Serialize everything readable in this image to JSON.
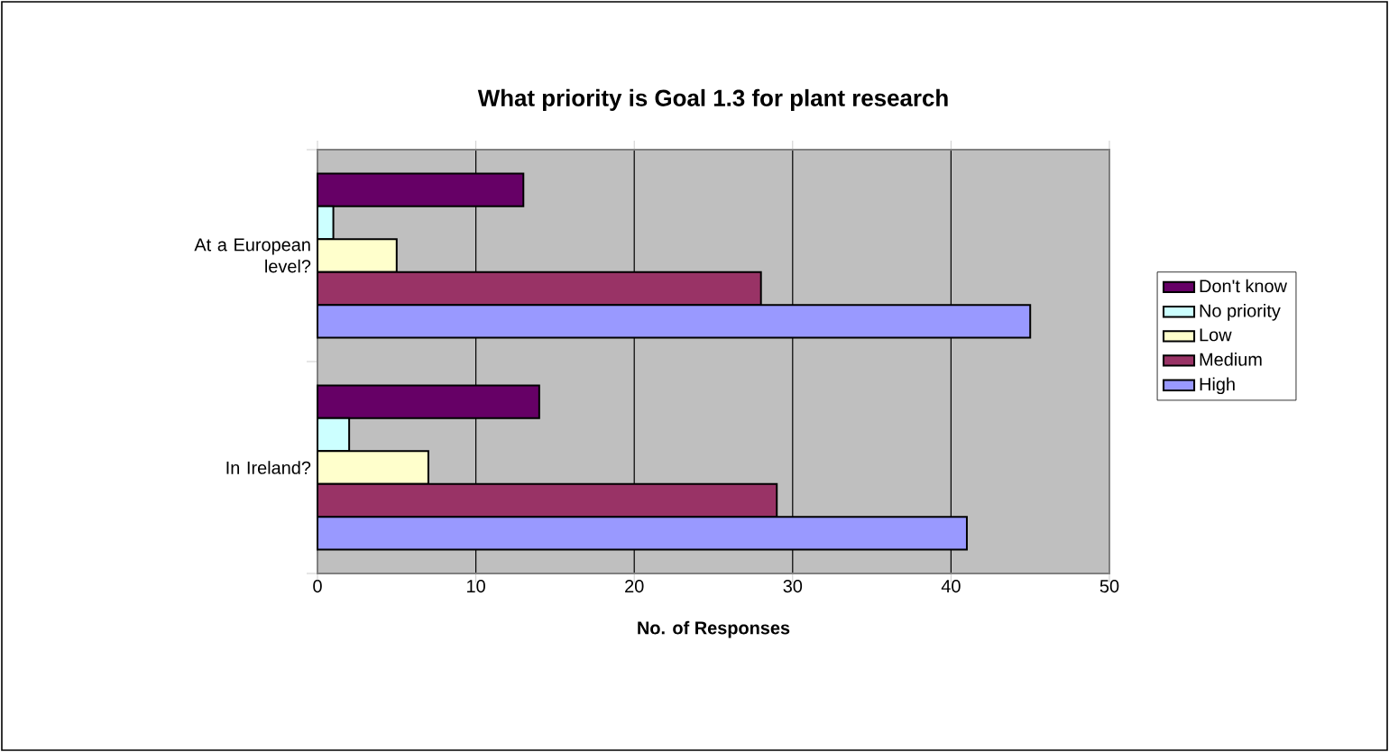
{
  "chart_data": {
    "type": "bar",
    "orientation": "horizontal",
    "title": "What priority is Goal 1.3 for plant research",
    "xlabel": "No. of Responses",
    "categories": [
      "At a European level?",
      "In Ireland?"
    ],
    "series": [
      {
        "name": "Don't know",
        "color": "#660066",
        "values": [
          13,
          14
        ]
      },
      {
        "name": "No priority",
        "color": "#ccffff",
        "values": [
          1,
          2
        ]
      },
      {
        "name": "Low",
        "color": "#ffffcc",
        "values": [
          5,
          7
        ]
      },
      {
        "name": "Medium",
        "color": "#993366",
        "values": [
          28,
          29
        ]
      },
      {
        "name": "High",
        "color": "#9999ff",
        "values": [
          45,
          41
        ]
      }
    ],
    "xlim": [
      0,
      50
    ],
    "xticks": [
      0,
      10,
      20,
      30,
      40,
      50
    ],
    "grid": "x",
    "legend": "right"
  }
}
